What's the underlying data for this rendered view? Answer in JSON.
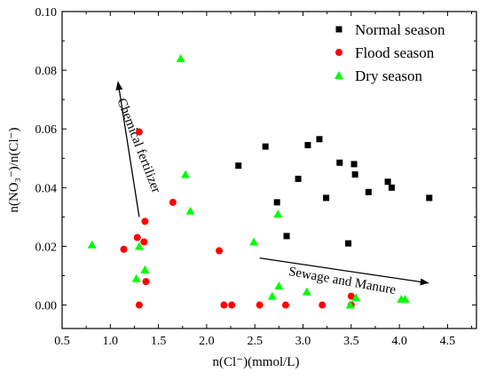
{
  "chart_data": {
    "type": "scatter",
    "title": "",
    "xlabel": "n(Cl⁻)(mmol/L)",
    "ylabel": "n(NO₃⁻)/n(Cl⁻)",
    "xlim": [
      0.5,
      4.8
    ],
    "ylim": [
      -0.008,
      0.1
    ],
    "x_ticks": [
      "0.5",
      "1.0",
      "1.5",
      "2.0",
      "2.5",
      "3.0",
      "3.5",
      "4.0",
      "4.5"
    ],
    "y_ticks": [
      "0.00",
      "0.02",
      "0.04",
      "0.06",
      "0.08",
      "0.10"
    ],
    "legend_position": "top-right",
    "series": [
      {
        "name": "Normal season",
        "color": "#000000",
        "marker": "square",
        "points": [
          [
            2.33,
            0.0475
          ],
          [
            2.61,
            0.054
          ],
          [
            2.73,
            0.035
          ],
          [
            2.83,
            0.0235
          ],
          [
            2.95,
            0.043
          ],
          [
            3.05,
            0.0545
          ],
          [
            3.17,
            0.0565
          ],
          [
            3.24,
            0.0365
          ],
          [
            3.38,
            0.0485
          ],
          [
            3.47,
            0.021
          ],
          [
            3.53,
            0.048
          ],
          [
            3.54,
            0.0445
          ],
          [
            3.68,
            0.0385
          ],
          [
            3.88,
            0.042
          ],
          [
            3.92,
            0.04
          ],
          [
            4.31,
            0.0365
          ]
        ]
      },
      {
        "name": "Flood season",
        "color": "#ff0000",
        "marker": "circle",
        "points": [
          [
            1.14,
            0.019
          ],
          [
            1.28,
            0.023
          ],
          [
            1.3,
            0.059
          ],
          [
            1.3,
            0.0
          ],
          [
            1.35,
            0.0215
          ],
          [
            1.36,
            0.0285
          ],
          [
            1.37,
            0.008
          ],
          [
            1.65,
            0.035
          ],
          [
            2.13,
            0.0185
          ],
          [
            2.18,
            0.0
          ],
          [
            2.26,
            0.0
          ],
          [
            2.55,
            0.0
          ],
          [
            2.82,
            0.0
          ],
          [
            3.2,
            0.0
          ],
          [
            3.5,
            0.003
          ],
          [
            3.5,
            0.0
          ]
        ]
      },
      {
        "name": "Dry season",
        "color": "#00ff00",
        "marker": "triangle",
        "points": [
          [
            0.81,
            0.0205
          ],
          [
            1.27,
            0.009
          ],
          [
            1.3,
            0.02
          ],
          [
            1.36,
            0.012
          ],
          [
            1.73,
            0.084
          ],
          [
            1.78,
            0.0445
          ],
          [
            1.83,
            0.032
          ],
          [
            2.49,
            0.0215
          ],
          [
            2.68,
            0.003
          ],
          [
            2.74,
            0.031
          ],
          [
            2.75,
            0.0065
          ],
          [
            3.04,
            0.0045
          ],
          [
            3.49,
            0.0
          ],
          [
            3.55,
            0.0025
          ],
          [
            4.02,
            0.002
          ],
          [
            4.06,
            0.002
          ]
        ]
      }
    ],
    "annotations": [
      {
        "text": "Chemical fertilizer",
        "arrow_from": [
          1.3,
          0.03
        ],
        "arrow_to": [
          1.08,
          0.076
        ]
      },
      {
        "text": "Sewage and Manure",
        "arrow_from": [
          2.55,
          0.016
        ],
        "arrow_to": [
          4.3,
          0.0075
        ]
      }
    ]
  }
}
